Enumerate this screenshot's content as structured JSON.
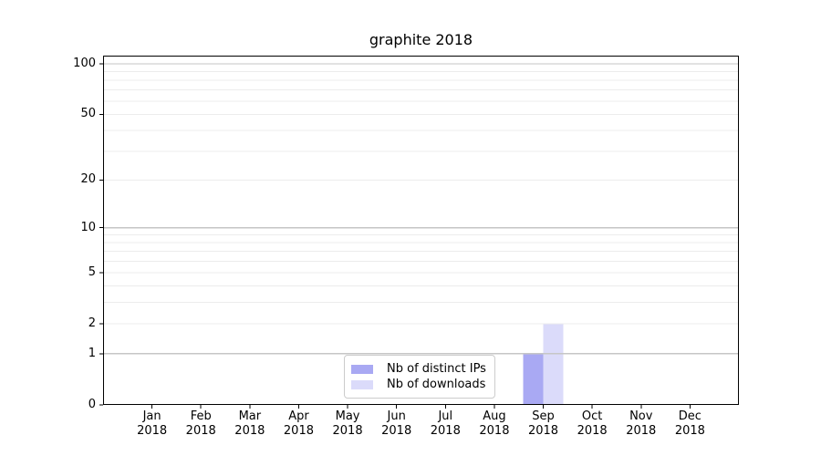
{
  "chart_data": {
    "type": "bar",
    "title": "graphite 2018",
    "categories": [
      "Jan",
      "Feb",
      "Mar",
      "Apr",
      "May",
      "Jun",
      "Jul",
      "Aug",
      "Sep",
      "Oct",
      "Nov",
      "Dec"
    ],
    "category_year": "2018",
    "series": [
      {
        "name": "Nb of distinct IPs",
        "color": "#a9a9f3",
        "values": [
          0,
          0,
          0,
          0,
          0,
          0,
          0,
          0,
          1,
          0,
          0,
          0
        ]
      },
      {
        "name": "Nb of downloads",
        "color": "#dbdbfa",
        "values": [
          0,
          0,
          0,
          0,
          0,
          0,
          0,
          0,
          2,
          0,
          0,
          0
        ]
      }
    ],
    "xlabel": "",
    "ylabel": "",
    "y_axis": {
      "scale": "log1p",
      "min": 0,
      "max": 112,
      "ticks": [
        0,
        1,
        2,
        5,
        10,
        20,
        50,
        100
      ],
      "grid_major": [
        1,
        10,
        100
      ],
      "grid_minor": [
        2,
        3,
        4,
        5,
        6,
        7,
        8,
        9,
        20,
        30,
        40,
        50,
        60,
        70,
        80,
        90
      ]
    },
    "legend_position": "lower center",
    "grid": true
  },
  "colors": {
    "grid_major": "#c6c6c6",
    "grid_minor": "#ececec",
    "spine": "#000000",
    "tick": "#000000",
    "background": "#ffffff"
  }
}
